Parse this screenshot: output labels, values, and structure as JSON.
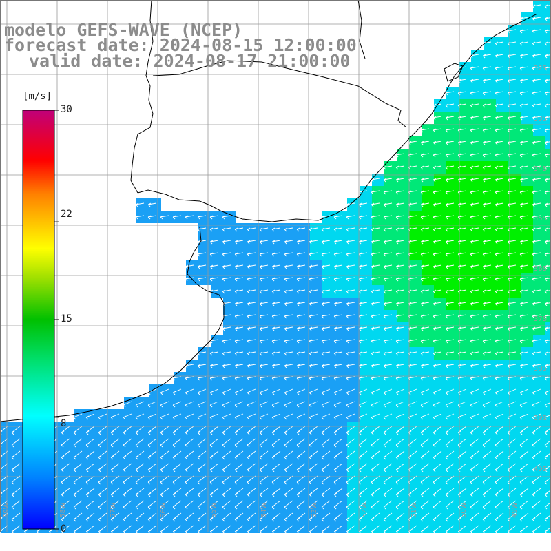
{
  "title": {
    "line1": "modelo GEFS-WAVE (NCEP)",
    "line2": "forecast date: 2024-08-15 12:00:00",
    "line3": "valid date: 2024-08-17 21:00:00"
  },
  "colorbar": {
    "unit": "[m/s]",
    "ticks": [
      "30",
      "22",
      "15",
      "8",
      "0"
    ],
    "tick_values": [
      30,
      22,
      15,
      8,
      0
    ],
    "colors": [
      "#0000ff",
      "#0096ff",
      "#00e5ff",
      "#00ffb0",
      "#00d000",
      "#90e800",
      "#ffff00",
      "#ff9000",
      "#ff0000",
      "#c00090"
    ]
  },
  "grid": {
    "lat_labels": [
      "32S",
      "33S",
      "34S",
      "35S",
      "36S",
      "37S",
      "38S",
      "39S",
      "40S"
    ],
    "lon_labels": [
      "59W",
      "58W",
      "57W",
      "56W",
      "55W",
      "54W",
      "53W",
      "52W",
      "51W",
      "50W",
      "49W"
    ]
  },
  "field": {
    "variable": "wind speed",
    "colors": {
      "low": "#1aa0f5",
      "mid": "#00d8f0",
      "high": "#00e878",
      "peak": "#00f000",
      "land": "#ffffff",
      "coast": "#000000",
      "arrow": "#ffffff",
      "grid": "#999999"
    }
  }
}
